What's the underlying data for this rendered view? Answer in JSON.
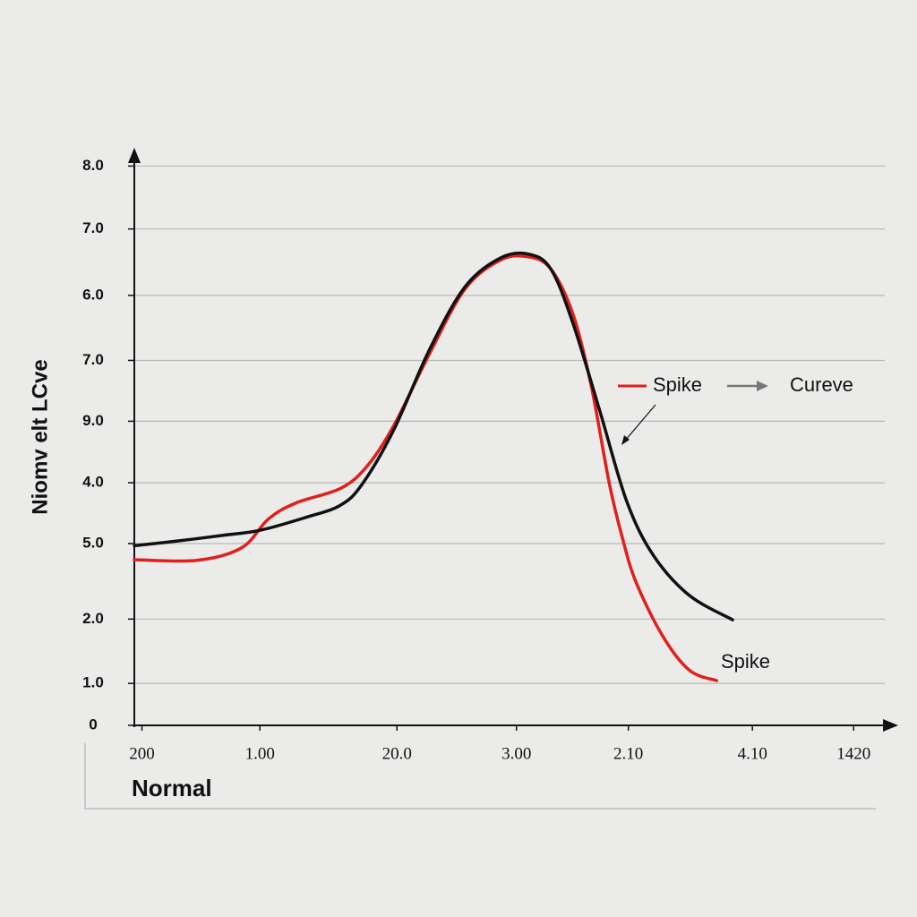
{
  "chart_data": {
    "type": "line",
    "y_label": "Niomv elt  LCve",
    "x_label": "Normal",
    "xlim": [
      0,
      10
    ],
    "ylim": [
      0,
      8.3
    ],
    "xticks": [
      {
        "value": 0.1,
        "label": "200"
      },
      {
        "value": 1.65,
        "label": "1.00"
      },
      {
        "value": 3.45,
        "label": "20.0"
      },
      {
        "value": 5.02,
        "label": "3.00"
      },
      {
        "value": 6.49,
        "label": "2.10"
      },
      {
        "value": 8.12,
        "label": "4.10"
      },
      {
        "value": 9.45,
        "label": "1420"
      }
    ],
    "yticks": [
      {
        "value": 8,
        "label": "8.0"
      },
      {
        "value": 7.1,
        "label": "7.0"
      },
      {
        "value": 6.15,
        "label": "6.0"
      },
      {
        "value": 5.22,
        "label": "7.0"
      },
      {
        "value": 4.35,
        "label": "9.0"
      },
      {
        "value": 3.47,
        "label": "4.0"
      },
      {
        "value": 2.6,
        "label": "5.0"
      },
      {
        "value": 1.52,
        "label": "2.0"
      },
      {
        "value": 0.6,
        "label": "1.0"
      },
      0
    ],
    "grid": true,
    "series": [
      {
        "name": "Spike",
        "color": "#e0201b",
        "x": [
          0,
          0.82,
          1.41,
          1.76,
          2.12,
          2.71,
          3.06,
          3.41,
          3.88,
          4.35,
          4.82,
          5.18,
          5.47,
          5.76,
          6.0,
          6.24,
          6.41,
          6.59,
          6.94,
          7.29,
          7.65
        ],
        "values": [
          2.37,
          2.36,
          2.54,
          2.95,
          3.18,
          3.39,
          3.71,
          4.29,
          5.32,
          6.25,
          6.66,
          6.7,
          6.53,
          5.89,
          4.87,
          3.46,
          2.69,
          2.05,
          1.28,
          0.79,
          0.64
        ]
      },
      {
        "name": "Cureve",
        "color": "#111111",
        "x": [
          0,
          0.59,
          1.18,
          1.65,
          2.24,
          2.71,
          3.0,
          3.41,
          3.88,
          4.35,
          4.82,
          5.18,
          5.47,
          5.76,
          6.12,
          6.47,
          6.82,
          7.29,
          7.86
        ],
        "values": [
          2.57,
          2.64,
          2.72,
          2.79,
          2.97,
          3.15,
          3.46,
          4.23,
          5.38,
          6.28,
          6.69,
          6.74,
          6.53,
          5.76,
          4.48,
          3.2,
          2.43,
          1.86,
          1.51
        ]
      }
    ],
    "annotations": [
      "Spike"
    ]
  }
}
